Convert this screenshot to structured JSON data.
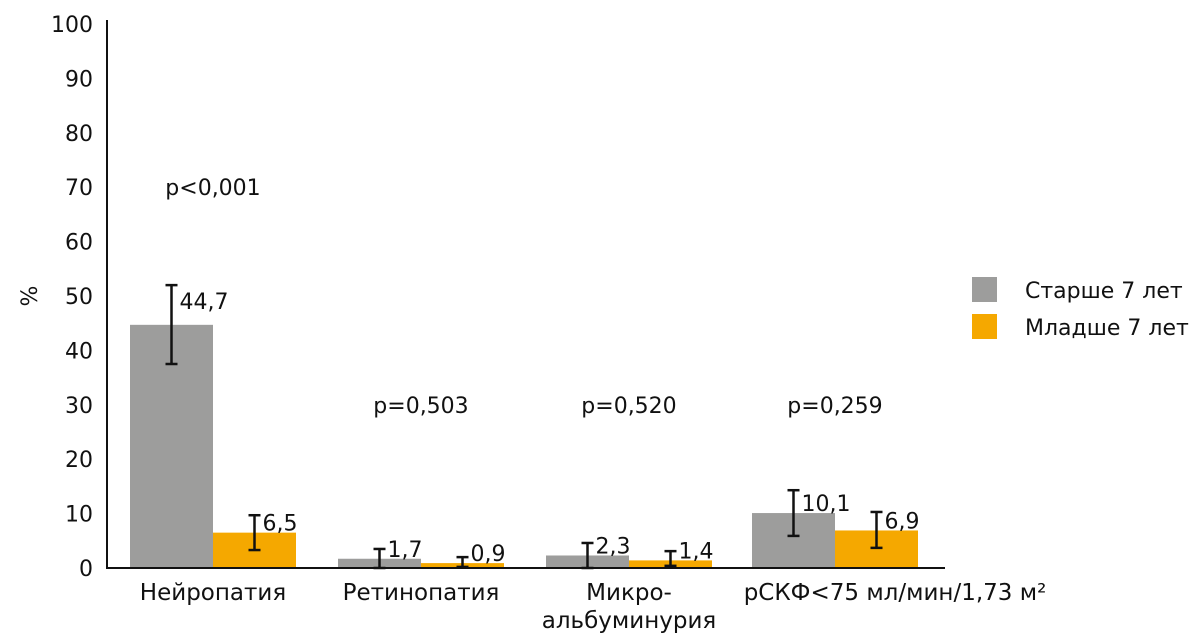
{
  "chart_data": {
    "type": "bar",
    "title": "",
    "xlabel": "",
    "ylabel": "%",
    "ylim": [
      0,
      100
    ],
    "yticks": [
      0,
      10,
      20,
      30,
      40,
      50,
      60,
      70,
      80,
      90,
      100
    ],
    "grid": false,
    "legend_position": "right",
    "categories": [
      {
        "label_lines": [
          "Нейропатия"
        ]
      },
      {
        "label_lines": [
          "Ретинопатия"
        ]
      },
      {
        "label_lines": [
          "Микро-",
          "альбуминурия"
        ]
      },
      {
        "label_lines": [
          "рСКФ<75 мл/мин/1,73 м²"
        ]
      }
    ],
    "series": [
      {
        "name": "Старше 7 лет",
        "color": "#9d9d9c",
        "values": [
          44.7,
          1.7,
          2.3,
          10.1
        ],
        "value_labels": [
          "44,7",
          "1,7",
          "2,3",
          "10,1"
        ],
        "error_low": [
          37.5,
          0.0,
          0.0,
          5.9
        ],
        "error_high": [
          52.0,
          3.5,
          4.6,
          14.3
        ]
      },
      {
        "name": "Младше 7 лет",
        "color": "#f5a800",
        "values": [
          6.5,
          0.9,
          1.4,
          6.9
        ],
        "value_labels": [
          "6,5",
          "0,9",
          "1,4",
          "6,9"
        ],
        "error_low": [
          3.3,
          0.2,
          0.4,
          3.7
        ],
        "error_high": [
          9.7,
          2.0,
          3.1,
          10.3
        ]
      }
    ],
    "annotations": [
      {
        "category_index": 0,
        "text": "p<0,001",
        "y": 70
      },
      {
        "category_index": 1,
        "text": "p=0,503",
        "y": 30
      },
      {
        "category_index": 2,
        "text": "p=0,520",
        "y": 30
      },
      {
        "category_index": 3,
        "text": "p=0,259",
        "y": 30
      }
    ]
  }
}
